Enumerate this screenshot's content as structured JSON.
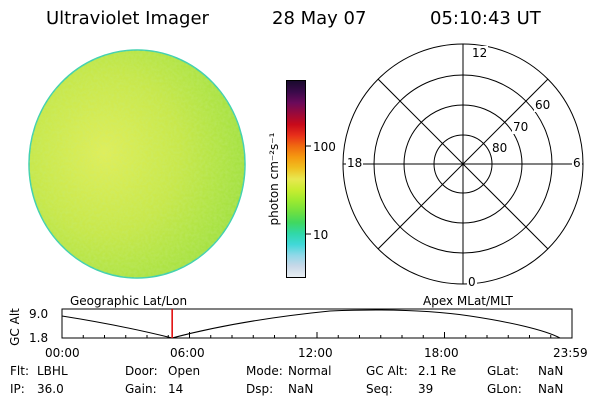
{
  "header": {
    "instrument": "Ultraviolet Imager",
    "date": "28 May 07",
    "time": "05:10:43 UT"
  },
  "colorbar": {
    "unit_label": "photon cm⁻²s⁻¹",
    "ticks": [
      "100",
      "10"
    ],
    "colors": [
      "#1a0a2e",
      "#3a0a4a",
      "#6a0a5a",
      "#9a0a3a",
      "#c80a1a",
      "#e8301a",
      "#f06a10",
      "#f59a10",
      "#f0c020",
      "#e8e850",
      "#c8ec30",
      "#9cea30",
      "#70e040",
      "#40d860",
      "#30d8a8",
      "#40d8d8",
      "#90d8e8",
      "#c8d8e8",
      "#e8eef2"
    ]
  },
  "polar": {
    "lat_labels": [
      "60",
      "70",
      "80"
    ],
    "mlt_labels": {
      "top": "12",
      "left": "18",
      "right": "6",
      "bottom": "0"
    }
  },
  "image_panel": {
    "fill_color": "#c8e84a",
    "edge_color": "#40d0b0"
  },
  "orbit": {
    "left_title": "Geographic Lat/Lon",
    "right_title": "Apex MLat/MLT",
    "y_axis_label": "GC Alt",
    "y_ticks": [
      "9.0",
      "1.8"
    ],
    "x_ticks": [
      "00:00",
      "06:00",
      "12:00",
      "18:00",
      "23:59"
    ],
    "marker_color": "#e00000",
    "current_time_fraction": 0.216
  },
  "status": {
    "row1": [
      {
        "label": "Flt:",
        "value": "LBHL"
      },
      {
        "label": "Door:",
        "value": "Open"
      },
      {
        "label": "Mode:",
        "value": "Normal"
      },
      {
        "label": "GC Alt:",
        "value": "2.1 Re"
      },
      {
        "label": "GLat:",
        "value": "NaN"
      }
    ],
    "row2": [
      {
        "label": "IP:",
        "value": "36.0"
      },
      {
        "label": "Gain:",
        "value": "14"
      },
      {
        "label": "Dsp:",
        "value": "NaN"
      },
      {
        "label": "Seq:",
        "value": "39"
      },
      {
        "label": "GLon:",
        "value": "NaN"
      }
    ]
  }
}
